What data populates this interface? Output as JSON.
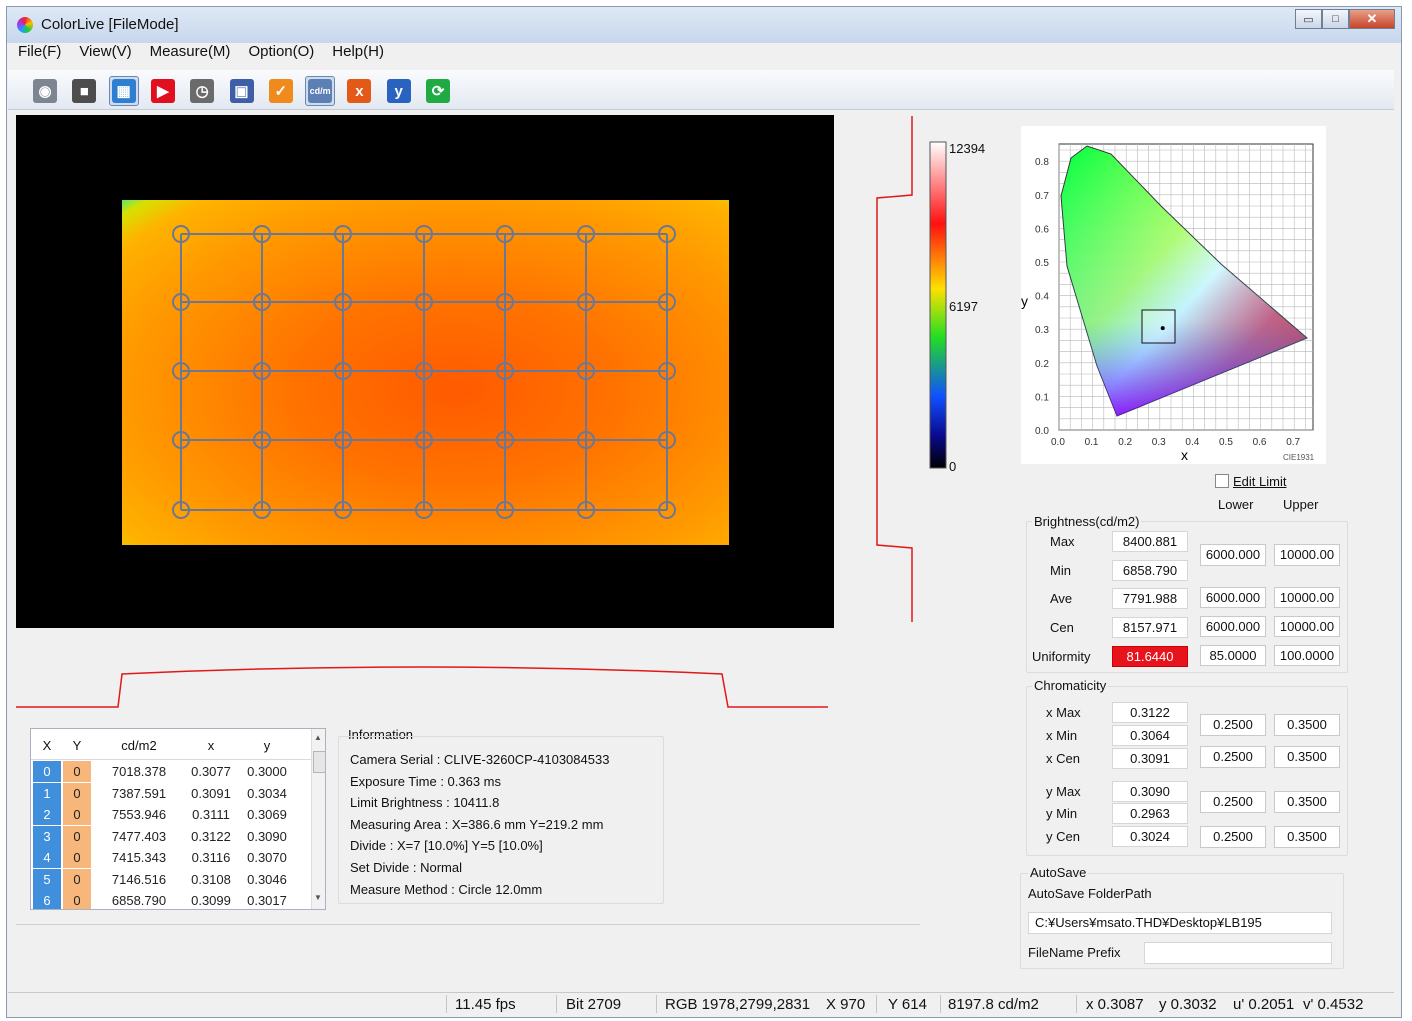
{
  "window": {
    "title": "ColorLive [FileMode]",
    "min_glyph": "▭",
    "max_glyph": "□",
    "close_glyph": "✕"
  },
  "menu": [
    "File(F)",
    "View(V)",
    "Measure(M)",
    "Option(O)",
    "Help(H)"
  ],
  "toolbar": [
    {
      "icon": "camera-icon",
      "color": "#7d8590",
      "glyph": "◉"
    },
    {
      "icon": "capture-icon",
      "color": "#4d4d4d",
      "glyph": "■"
    },
    {
      "icon": "image-view-icon",
      "color": "#2f7fd0",
      "glyph": "▦",
      "active": true
    },
    {
      "icon": "record-icon",
      "color": "#e0101e",
      "glyph": "▶"
    },
    {
      "icon": "clock-icon",
      "color": "#6b6b6b",
      "glyph": "◷"
    },
    {
      "icon": "save-icon",
      "color": "#3f5ea8",
      "glyph": "▣"
    },
    {
      "icon": "check-icon",
      "color": "#f08a1c",
      "glyph": "✓"
    },
    {
      "icon": "cdm2-icon",
      "color": "#5c7fb5",
      "glyph": "cd/m",
      "active": true
    },
    {
      "icon": "x-icon",
      "color": "#e35a18",
      "glyph": "x"
    },
    {
      "icon": "y-icon",
      "color": "#2a62c0",
      "glyph": "y"
    },
    {
      "icon": "refresh-icon",
      "color": "#1faa44",
      "glyph": "⟳"
    }
  ],
  "colorscale": {
    "max": "12394",
    "mid": "6197",
    "min": "0"
  },
  "cie": {
    "y_label": "y",
    "x_label": "x",
    "caption": "CIE1931",
    "ticks": [
      "0.0",
      "0.1",
      "0.2",
      "0.3",
      "0.4",
      "0.5",
      "0.6",
      "0.7",
      "0.8"
    ],
    "point_x": 0.3087,
    "point_y": 0.3032
  },
  "limits": {
    "edit_limit_label": "Edit Limit",
    "lower_label": "Lower",
    "upper_label": "Upper"
  },
  "brightness": {
    "title": "Brightness(cd/m2)",
    "rows": [
      {
        "label": "Max",
        "value": "8400.881"
      },
      {
        "label": "Min",
        "value": "6858.790"
      },
      {
        "label": "Ave",
        "value": "7791.988"
      },
      {
        "label": "Cen",
        "value": "8157.971"
      },
      {
        "label": "Uniformity",
        "value": "81.6440"
      }
    ],
    "maxmin_lower": "6000.000",
    "maxmin_upper": "10000.00",
    "ave_lower": "6000.000",
    "ave_upper": "10000.00",
    "cen_lower": "6000.000",
    "cen_upper": "10000.00",
    "uni_lower": "85.0000",
    "uni_upper": "100.0000"
  },
  "chromaticity": {
    "title": "Chromaticity",
    "rows": [
      {
        "label": "x Max",
        "value": "0.3122"
      },
      {
        "label": "x Min",
        "value": "0.3064"
      },
      {
        "label": "x Cen",
        "value": "0.3091"
      },
      {
        "label": "y Max",
        "value": "0.3090"
      },
      {
        "label": "y Min",
        "value": "0.2963"
      },
      {
        "label": "y Cen",
        "value": "0.3024"
      }
    ],
    "limits": [
      "0.2500",
      "0.3500"
    ]
  },
  "autosave": {
    "title": "AutoSave",
    "folder_label": "AutoSave FolderPath",
    "folder_value": "C:¥Users¥msato.THD¥Desktop¥LB195",
    "prefix_label": "FileName Prefix",
    "prefix_value": ""
  },
  "table": {
    "headers": [
      "X",
      "Y",
      "cd/m2",
      "x",
      "y"
    ],
    "rows": [
      [
        "0",
        "0",
        "7018.378",
        "0.3077",
        "0.3000"
      ],
      [
        "1",
        "0",
        "7387.591",
        "0.3091",
        "0.3034"
      ],
      [
        "2",
        "0",
        "7553.946",
        "0.3111",
        "0.3069"
      ],
      [
        "3",
        "0",
        "7477.403",
        "0.3122",
        "0.3090"
      ],
      [
        "4",
        "0",
        "7415.343",
        "0.3116",
        "0.3070"
      ],
      [
        "5",
        "0",
        "7146.516",
        "0.3108",
        "0.3046"
      ],
      [
        "6",
        "0",
        "6858.790",
        "0.3099",
        "0.3017"
      ]
    ]
  },
  "information": {
    "title": "Information",
    "lines": [
      "Camera Serial : CLIVE-3260CP-4103084533",
      "Exposure Time : 0.363 ms",
      "Limit Brightness : 10411.8",
      "Measuring Area : X=386.6 mm  Y=219.2 mm",
      "Divide : X=7 [10.0%]  Y=5 [10.0%]",
      "Set Divide : Normal",
      "Measure Method : Circle 12.0mm"
    ]
  },
  "status": {
    "fps": "11.45 fps",
    "bit": "Bit 2709",
    "rgb": "RGB 1978,2799,2831",
    "x": "X 970",
    "y": "Y 614",
    "lum": "8197.8 cd/m2",
    "cx": "x 0.3087",
    "cy": "y 0.3032",
    "u": "u' 0.2051",
    "v": "v' 0.4532"
  }
}
